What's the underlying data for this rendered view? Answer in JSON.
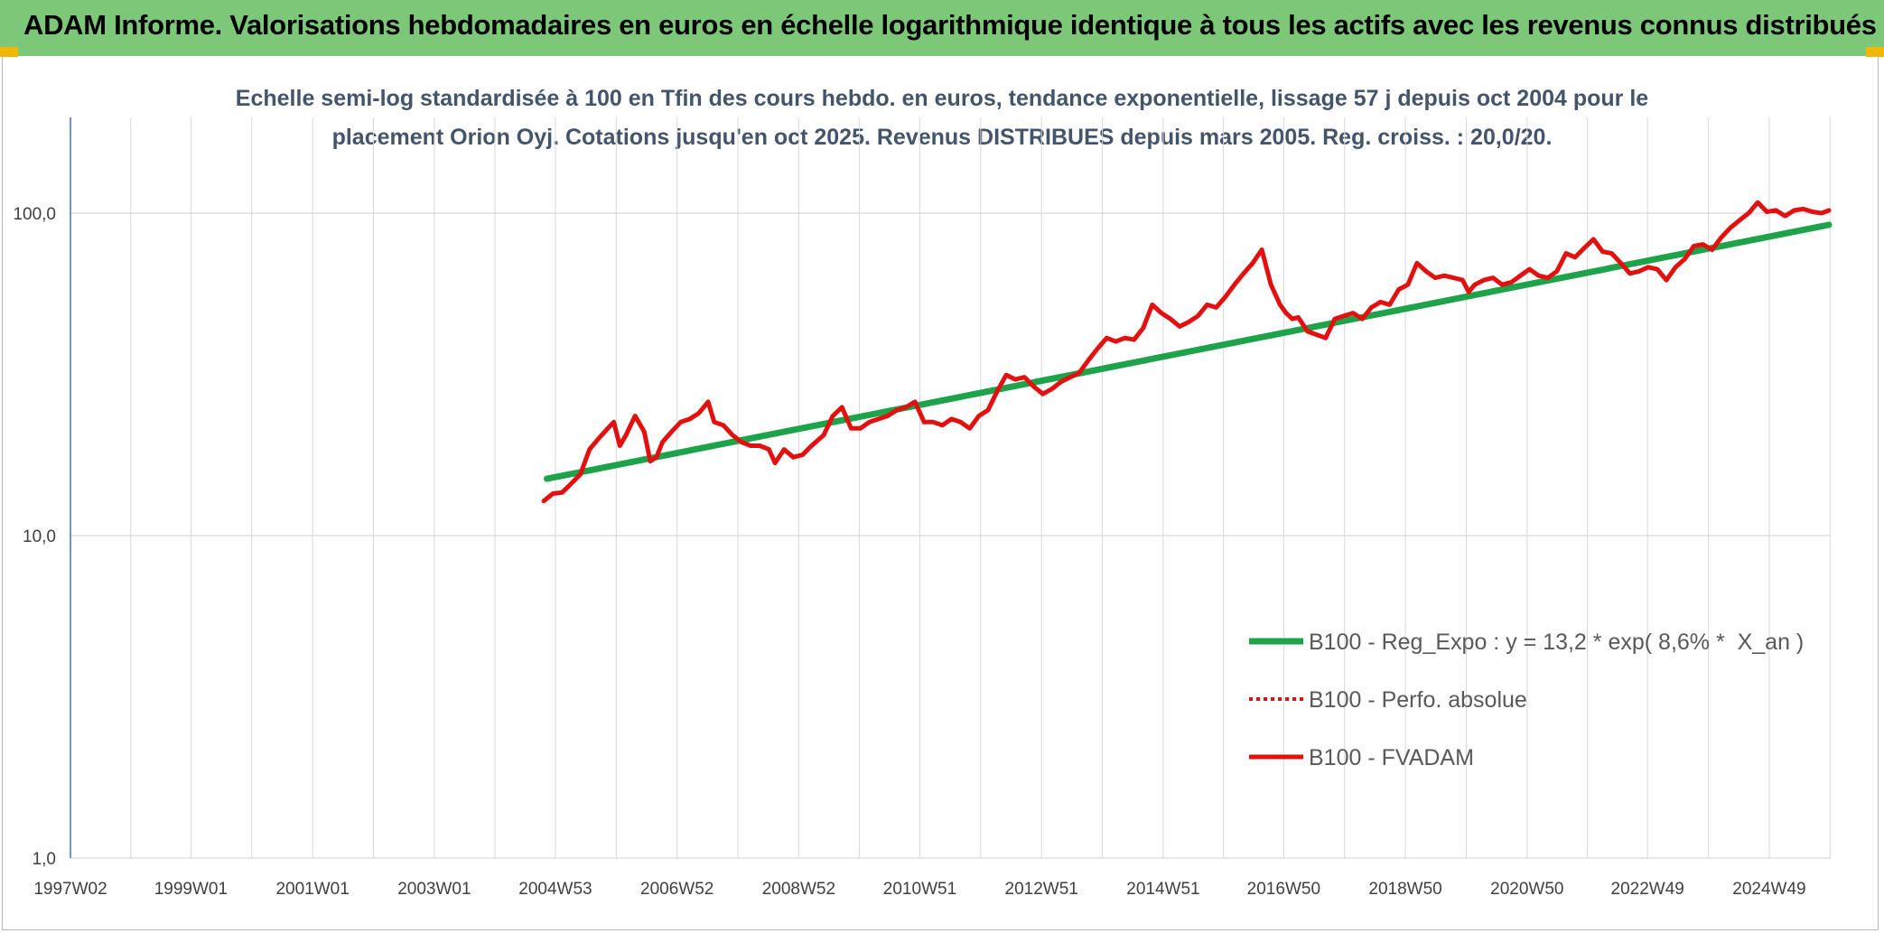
{
  "header": {
    "title": "ADAM Informe. Valorisations hebdomadaires en euros en échelle logarithmique identique à tous les actifs avec les revenus connus distribués"
  },
  "subtitle": {
    "line1": "Echelle semi-log standardisée à 100 en Tfin des cours hebdo. en euros, tendance exponentielle, lissage 57 j depuis oct 2004 pour le",
    "line2": "placement Orion Oyj. Cotations jusqu'en oct 2025. Revenus DISTRIBUES depuis mars 2005. Reg. croiss. : 20,0/20."
  },
  "colors": {
    "banner": "#7dc878",
    "trend": "#1ea34a",
    "fvadam": "#e31010",
    "perfo": "#e31010",
    "grid": "#d9d9d9",
    "axis": "#4472c4"
  },
  "chart_data": {
    "type": "line",
    "yscale": "log",
    "ylim": [
      1,
      200
    ],
    "xlim": [
      1997.02,
      2025.95
    ],
    "yticks": [
      {
        "value": 1,
        "label": "1,0"
      },
      {
        "value": 10,
        "label": "10,0"
      },
      {
        "value": 100,
        "label": "100,0"
      }
    ],
    "xticks": [
      {
        "value": 1997.02,
        "label": "1997W02"
      },
      {
        "value": 1999.0,
        "label": "1999W01"
      },
      {
        "value": 2001.0,
        "label": "2001W01"
      },
      {
        "value": 2003.0,
        "label": "2003W01"
      },
      {
        "value": 2004.99,
        "label": "2004W53"
      },
      {
        "value": 2006.99,
        "label": "2006W52"
      },
      {
        "value": 2008.99,
        "label": "2008W52"
      },
      {
        "value": 2010.98,
        "label": "2010W51"
      },
      {
        "value": 2012.98,
        "label": "2012W51"
      },
      {
        "value": 2014.98,
        "label": "2014W51"
      },
      {
        "value": 2016.96,
        "label": "2016W50"
      },
      {
        "value": 2018.96,
        "label": "2018W50"
      },
      {
        "value": 2020.96,
        "label": "2020W50"
      },
      {
        "value": 2022.94,
        "label": "2022W49"
      },
      {
        "value": 2024.94,
        "label": "2024W49"
      }
    ],
    "legend": [
      {
        "name": "B100 - Reg_Expo : y = 13,2 * exp( 8,6% *  X_an )",
        "style": "solid",
        "series": "trend"
      },
      {
        "name": "B100 - Perfo. absolue",
        "style": "dotted",
        "series": "perfo"
      },
      {
        "name": "B100 - FVADAM",
        "style": "solid",
        "series": "fvadam"
      }
    ],
    "series": [
      {
        "key": "trend",
        "name": "B100 - Reg_Expo : y = 13,2 * exp( 8,6% *  X_an )",
        "x": [
          2004.85,
          2025.92
        ],
        "y": [
          15.0,
          92.0
        ]
      },
      {
        "key": "perfo",
        "name": "B100 - Perfo. absolue",
        "x": [],
        "y": []
      },
      {
        "key": "fvadam",
        "name": "B100 - FVADAM",
        "x": [
          2004.8,
          2004.95,
          2005.1,
          2005.25,
          2005.4,
          2005.55,
          2005.7,
          2005.85,
          2005.95,
          2006.05,
          2006.15,
          2006.3,
          2006.45,
          2006.55,
          2006.65,
          2006.75,
          2006.9,
          2007.05,
          2007.2,
          2007.35,
          2007.5,
          2007.6,
          2007.75,
          2007.9,
          2008.05,
          2008.2,
          2008.35,
          2008.5,
          2008.6,
          2008.75,
          2008.9,
          2009.05,
          2009.2,
          2009.4,
          2009.55,
          2009.7,
          2009.85,
          2010.0,
          2010.15,
          2010.3,
          2010.45,
          2010.6,
          2010.75,
          2010.9,
          2011.05,
          2011.2,
          2011.35,
          2011.5,
          2011.65,
          2011.8,
          2011.95,
          2012.1,
          2012.25,
          2012.4,
          2012.55,
          2012.7,
          2012.85,
          2013.0,
          2013.15,
          2013.3,
          2013.45,
          2013.6,
          2013.75,
          2013.9,
          2014.05,
          2014.2,
          2014.35,
          2014.5,
          2014.65,
          2014.8,
          2014.95,
          2015.1,
          2015.25,
          2015.4,
          2015.55,
          2015.7,
          2015.85,
          2016.0,
          2016.15,
          2016.3,
          2016.45,
          2016.6,
          2016.75,
          2016.9,
          2017.0,
          2017.1,
          2017.2,
          2017.35,
          2017.5,
          2017.65,
          2017.8,
          2017.95,
          2018.1,
          2018.25,
          2018.4,
          2018.55,
          2018.7,
          2018.85,
          2019.0,
          2019.15,
          2019.3,
          2019.45,
          2019.6,
          2019.75,
          2019.9,
          2020.0,
          2020.1,
          2020.25,
          2020.4,
          2020.55,
          2020.7,
          2020.85,
          2021.0,
          2021.15,
          2021.3,
          2021.45,
          2021.6,
          2021.75,
          2021.9,
          2022.05,
          2022.2,
          2022.35,
          2022.5,
          2022.65,
          2022.8,
          2022.95,
          2023.1,
          2023.25,
          2023.4,
          2023.55,
          2023.7,
          2023.85,
          2024.0,
          2024.15,
          2024.3,
          2024.45,
          2024.6,
          2024.75,
          2024.9,
          2025.05,
          2025.2,
          2025.35,
          2025.5,
          2025.65,
          2025.8,
          2025.92
        ],
        "y": [
          12.8,
          13.5,
          13.6,
          14.5,
          15.5,
          18.5,
          20.0,
          21.5,
          22.5,
          19.0,
          20.5,
          23.5,
          21.0,
          17.0,
          17.5,
          19.5,
          21.0,
          22.5,
          23.0,
          24.0,
          26.0,
          22.5,
          22.0,
          20.5,
          19.5,
          19.0,
          19.0,
          18.5,
          16.8,
          18.5,
          17.5,
          17.8,
          19.0,
          20.5,
          23.5,
          25.0,
          21.5,
          21.5,
          22.5,
          23.0,
          23.5,
          24.5,
          25.0,
          26.0,
          22.5,
          22.5,
          22.0,
          23.0,
          22.5,
          21.5,
          23.5,
          24.5,
          28.0,
          31.5,
          30.5,
          31.0,
          29.0,
          27.5,
          28.5,
          30.0,
          31.0,
          32.0,
          35.0,
          38.0,
          41.0,
          40.0,
          41.0,
          40.5,
          44.0,
          52.0,
          49.0,
          47.0,
          44.5,
          46.0,
          48.0,
          52.0,
          51.0,
          55.0,
          60.0,
          65.0,
          70.0,
          77.0,
          60.0,
          52.0,
          49.0,
          47.0,
          47.5,
          43.0,
          42.0,
          41.0,
          47.0,
          48.0,
          49.0,
          47.0,
          51.0,
          53.0,
          52.0,
          58.0,
          60.0,
          70.0,
          66.0,
          63.0,
          64.0,
          63.0,
          62.0,
          57.0,
          60.0,
          62.0,
          63.0,
          60.0,
          61.0,
          64.0,
          67.0,
          64.0,
          63.0,
          66.0,
          75.0,
          73.0,
          78.0,
          83.0,
          76.0,
          75.0,
          70.0,
          65.0,
          66.0,
          68.0,
          67.0,
          62.0,
          68.0,
          72.0,
          79.0,
          80.0,
          77.0,
          84.0,
          90.0,
          95.0,
          100.0,
          108.0,
          101.0,
          102.0,
          98.0,
          102.0,
          103.0,
          101.0,
          100.0,
          102.0
        ]
      }
    ]
  }
}
